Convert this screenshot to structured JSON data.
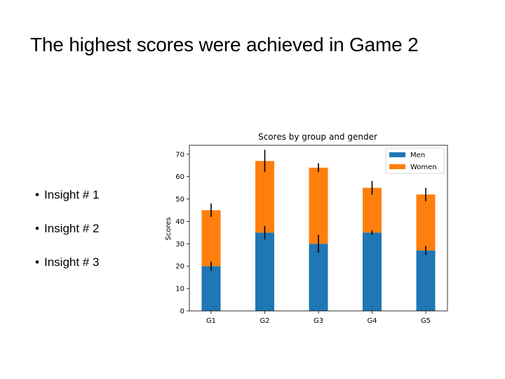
{
  "slide": {
    "title": "The highest scores were achieved in Game 2",
    "bullets": [
      {
        "marker": "•",
        "text": "Insight # 1"
      },
      {
        "marker": "•",
        "text": "Insight # 2"
      },
      {
        "marker": "•",
        "text": "Insight # 3"
      }
    ]
  },
  "chart_data": {
    "type": "bar",
    "stacked": true,
    "title": "Scores by group and gender",
    "xlabel": "",
    "ylabel": "Scores",
    "categories": [
      "G1",
      "G2",
      "G3",
      "G4",
      "G5"
    ],
    "ylim": [
      0,
      74
    ],
    "yticks": [
      0,
      10,
      20,
      30,
      40,
      50,
      60,
      70
    ],
    "grid": false,
    "legend_position": "top-right",
    "series": [
      {
        "name": "Men",
        "color": "#1f77b4",
        "values": [
          20,
          35,
          30,
          35,
          27
        ],
        "errors": [
          2,
          3,
          4,
          1,
          2
        ]
      },
      {
        "name": "Women",
        "color": "#ff7f0e",
        "values": [
          25,
          32,
          34,
          20,
          25
        ],
        "errors": [
          3,
          5,
          2,
          3,
          3
        ]
      }
    ]
  }
}
